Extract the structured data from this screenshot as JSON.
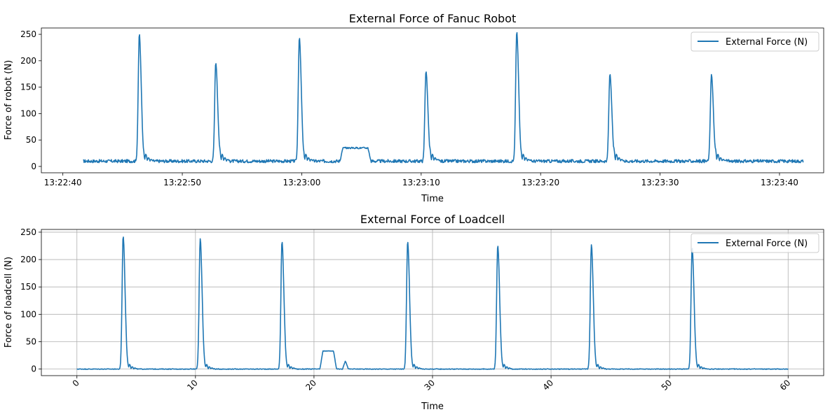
{
  "chart_data": [
    {
      "type": "line",
      "title": "External Force of Fanuc Robot",
      "xlabel": "Time",
      "ylabel": "Force of robot (N)",
      "x_unit": "seconds from 13:22:40",
      "x_ticks": [
        0,
        10,
        20,
        30,
        40,
        50,
        60
      ],
      "x_tick_labels": [
        "13:22:40",
        "13:22:50",
        "13:23:00",
        "13:23:10",
        "13:23:20",
        "13:23:30",
        "13:23:40"
      ],
      "xlim": [
        -1.8,
        63.7
      ],
      "ylim": [
        -12,
        262
      ],
      "y_ticks": [
        0,
        50,
        100,
        150,
        200,
        250
      ],
      "grid": false,
      "legend_position": "top-right",
      "series": [
        {
          "name": "External Force (N)",
          "color": "#1f77b4",
          "baseline": 10,
          "noise": 3,
          "x_range": [
            1.7,
            62
          ],
          "peaks": [
            {
              "x": 6.4,
              "y": 251
            },
            {
              "x": 12.8,
              "y": 196
            },
            {
              "x": 19.8,
              "y": 244
            },
            {
              "x": 30.4,
              "y": 180
            },
            {
              "x": 38.0,
              "y": 255
            },
            {
              "x": 45.8,
              "y": 175
            },
            {
              "x": 54.3,
              "y": 174
            }
          ],
          "plateaus": [
            {
              "x0": 23.2,
              "x1": 25.8,
              "y": 35
            }
          ]
        }
      ]
    },
    {
      "type": "line",
      "title": "External Force of Loadcell",
      "xlabel": "Time",
      "ylabel": "Force of loadcell (N)",
      "x_ticks": [
        0,
        10,
        20,
        30,
        40,
        50,
        60
      ],
      "x_tick_labels": [
        "0",
        "10",
        "20",
        "30",
        "40",
        "50",
        "60"
      ],
      "xlim": [
        -3,
        63
      ],
      "ylim": [
        -12,
        255
      ],
      "y_ticks": [
        0,
        50,
        100,
        150,
        200,
        250
      ],
      "grid": true,
      "legend_position": "top-right",
      "series": [
        {
          "name": "External Force (N)",
          "color": "#1f77b4",
          "baseline": 0,
          "noise": 0.6,
          "x_range": [
            0,
            60
          ],
          "peaks": [
            {
              "x": 3.9,
              "y": 243
            },
            {
              "x": 10.4,
              "y": 238
            },
            {
              "x": 17.3,
              "y": 233
            },
            {
              "x": 27.9,
              "y": 233
            },
            {
              "x": 35.5,
              "y": 226
            },
            {
              "x": 43.4,
              "y": 227
            },
            {
              "x": 51.9,
              "y": 222
            }
          ],
          "plateaus": [
            {
              "x0": 20.5,
              "x1": 21.9,
              "y": 33
            },
            {
              "x0": 22.4,
              "x1": 22.9,
              "y": 15
            }
          ]
        }
      ]
    }
  ]
}
